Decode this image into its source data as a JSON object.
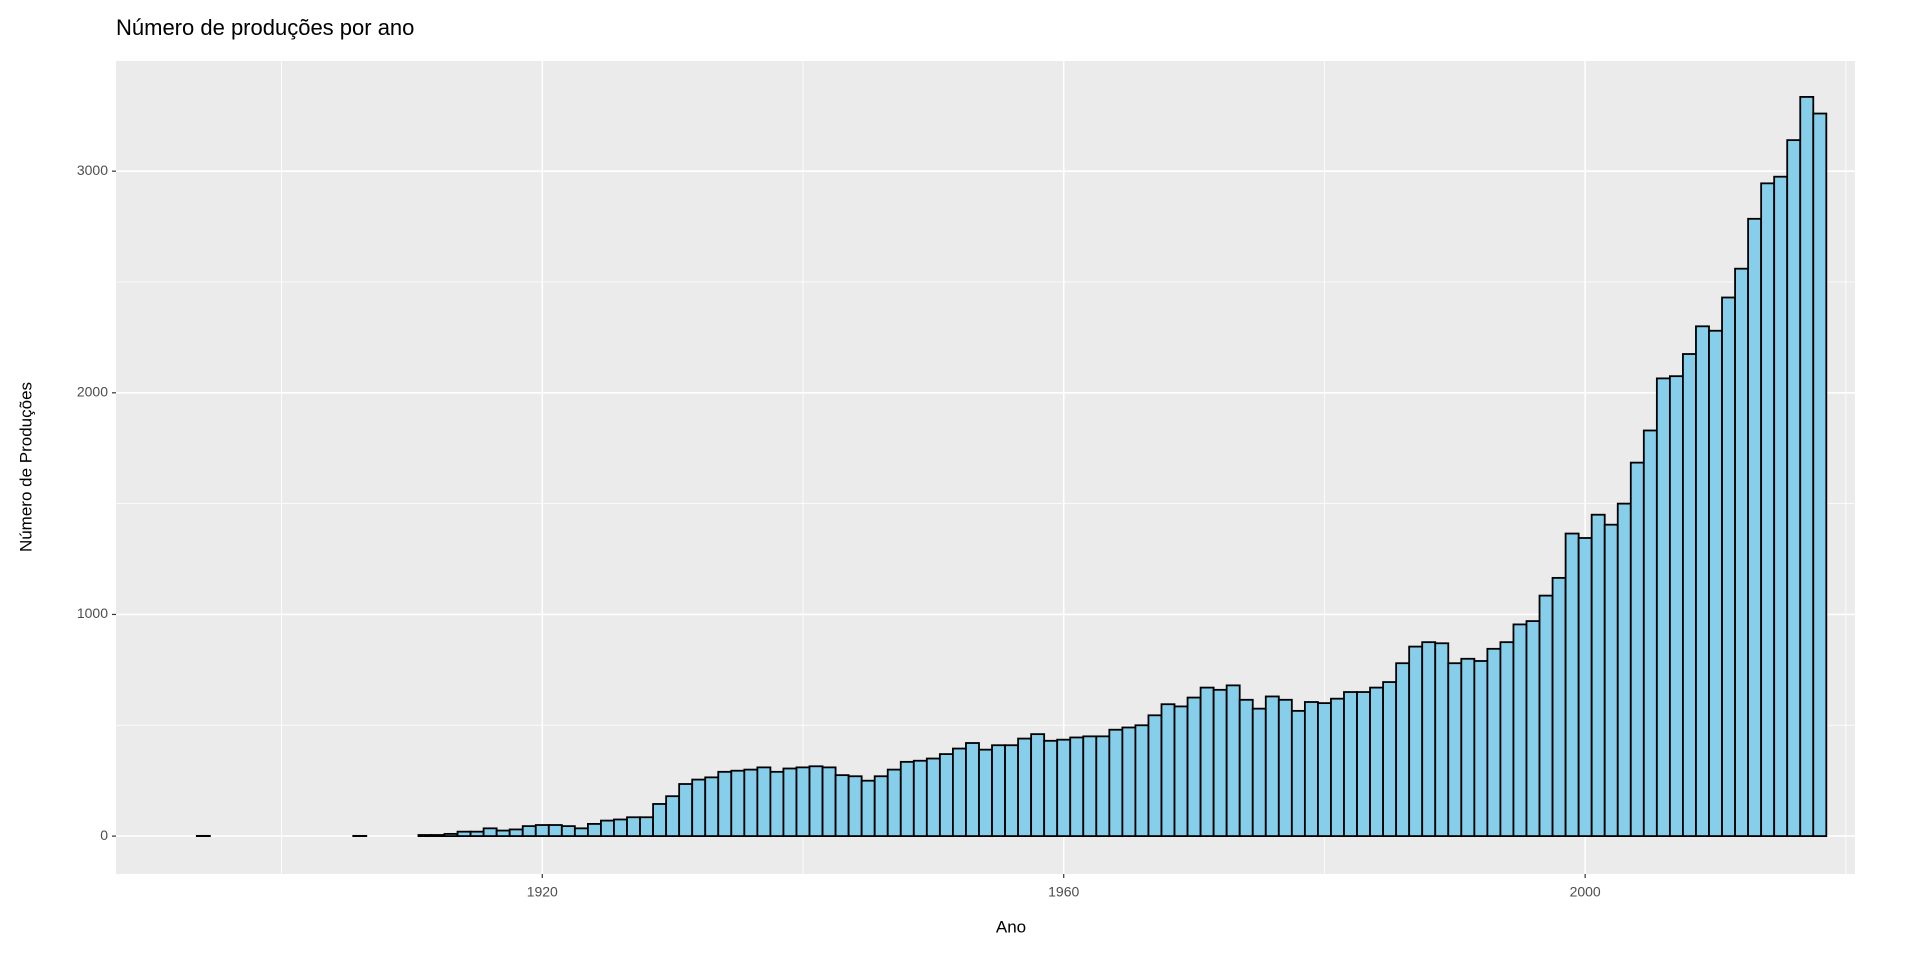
{
  "chart_data": {
    "type": "histogram",
    "title": "Número de produções por ano",
    "x_label": "Ano",
    "y_label": "Número de Produções",
    "fill": "#87ceeb",
    "edgecolor": "#000000",
    "background": "#ebebeb",
    "grid": true,
    "xlim": [
      1887.3,
      2020.7
    ],
    "ylim": [
      -171,
      3497
    ],
    "xticks": [
      1920,
      1960,
      2000
    ],
    "yticks": [
      0,
      1000,
      2000,
      3000
    ],
    "x_minor_ticks": [
      1900,
      1940,
      1980,
      2020
    ],
    "y_minor_ticks": [
      500,
      1500,
      2500
    ],
    "bins": [
      1893.5,
      1894.5,
      1895.5,
      1896.5,
      1897.5,
      1898.5,
      1899.5,
      1900.5,
      1901.5,
      1902.5,
      1903.5,
      1904.5,
      1905.5,
      1906.5,
      1907.5,
      1908.5,
      1909.5,
      1910.5,
      1911.5,
      1912.5,
      1913.5,
      1914.5,
      1915.5,
      1916.5,
      1917.5,
      1918.5,
      1919.5,
      1920.5,
      1921.5,
      1922.5,
      1923.5,
      1924.5,
      1925.5,
      1926.5,
      1927.5,
      1928.5,
      1929.5,
      1930.5,
      1931.5,
      1932.5,
      1933.5,
      1934.5,
      1935.5,
      1936.5,
      1937.5,
      1938.5,
      1939.5,
      1940.5,
      1941.5,
      1942.5,
      1943.5,
      1944.5,
      1945.5,
      1946.5,
      1947.5,
      1948.5,
      1949.5,
      1950.5,
      1951.5,
      1952.5,
      1953.5,
      1954.5,
      1955.5,
      1956.5,
      1957.5,
      1958.5,
      1959.5,
      1960.5,
      1961.5,
      1962.5,
      1963.5,
      1964.5,
      1965.5,
      1966.5,
      1967.5,
      1968.5,
      1969.5,
      1970.5,
      1971.5,
      1972.5,
      1973.5,
      1974.5,
      1975.5,
      1976.5,
      1977.5,
      1978.5,
      1979.5,
      1980.5,
      1981.5,
      1982.5,
      1983.5,
      1984.5,
      1985.5,
      1986.5,
      1987.5,
      1988.5,
      1989.5,
      1990.5,
      1991.5,
      1992.5,
      1993.5,
      1994.5,
      1995.5,
      1996.5,
      1997.5,
      1998.5,
      1999.5,
      2000.5,
      2001.5,
      2002.5,
      2003.5,
      2004.5,
      2005.5,
      2006.5,
      2007.5,
      2008.5,
      2009.5,
      2010.5,
      2011.5,
      2012.5,
      2013.5,
      2014.5,
      2015.5,
      2016.5,
      2017.5,
      2018.5
    ],
    "values": [
      1,
      0,
      0,
      0,
      0,
      0,
      0,
      0,
      0,
      0,
      0,
      0,
      1,
      0,
      0,
      0,
      0,
      5,
      5,
      10,
      20,
      20,
      35,
      25,
      30,
      45,
      50,
      50,
      45,
      35,
      55,
      70,
      75,
      85,
      85,
      145,
      180,
      235,
      255,
      265,
      290,
      295,
      300,
      310,
      290,
      305,
      310,
      315,
      310,
      275,
      270,
      250,
      270,
      300,
      335,
      340,
      350,
      370,
      395,
      420,
      390,
      410,
      410,
      440,
      460,
      430,
      435,
      445,
      450,
      450,
      480,
      490,
      500,
      545,
      595,
      585,
      625,
      670,
      660,
      680,
      615,
      575,
      630,
      615,
      565,
      605,
      600,
      620,
      650,
      650,
      670,
      695,
      780,
      855,
      875,
      870,
      780,
      800,
      790,
      845,
      875,
      955,
      970,
      1085,
      1165,
      1365,
      1345,
      1450,
      1405,
      1500,
      1685,
      1830,
      2065,
      2075,
      2175,
      2300,
      2280,
      2430,
      2560,
      2785,
      2945,
      2975,
      3140,
      3335,
      3260
    ]
  }
}
